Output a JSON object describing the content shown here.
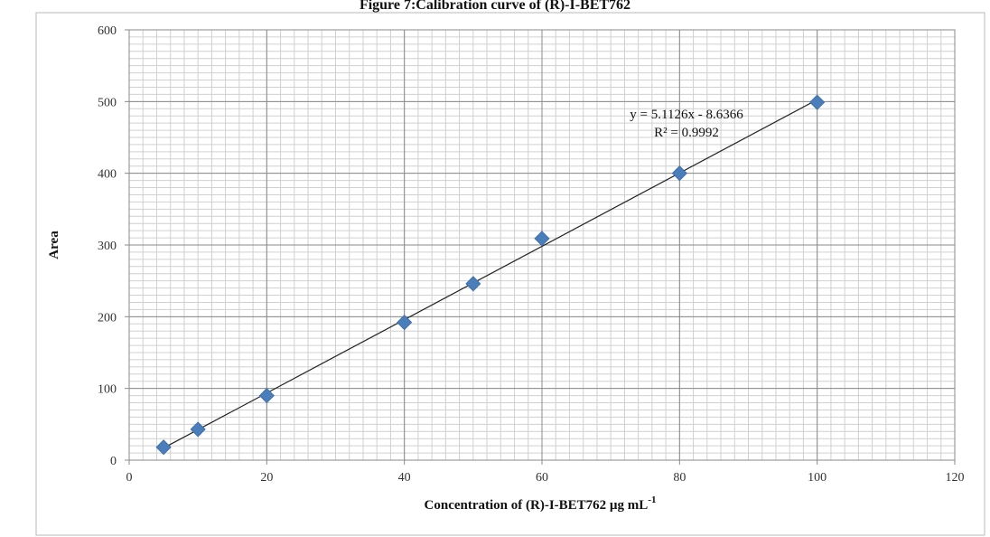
{
  "chart_data": {
    "type": "scatter",
    "title": "Figure 7:Calibration curve of (R)-I-BET762",
    "xlabel": "Concentration of (R)-I-BET762 µg mL",
    "xlabel_sup": "-1",
    "ylabel": "Area",
    "xlim": [
      0,
      120
    ],
    "ylim": [
      0,
      600
    ],
    "x_ticks": [
      "0",
      "20",
      "40",
      "60",
      "80",
      "100",
      "120"
    ],
    "y_ticks": [
      "0",
      "100",
      "200",
      "300",
      "400",
      "500",
      "600"
    ],
    "grid": true,
    "legend": "none",
    "series": [
      {
        "marker": "diamond",
        "color": "#4a7ebb",
        "points": [
          {
            "x": 5,
            "y": 18
          },
          {
            "x": 10,
            "y": 43
          },
          {
            "x": 20,
            "y": 90
          },
          {
            "x": 40,
            "y": 192
          },
          {
            "x": 50,
            "y": 246
          },
          {
            "x": 60,
            "y": 309
          },
          {
            "x": 80,
            "y": 400
          },
          {
            "x": 100,
            "y": 499
          }
        ]
      }
    ],
    "trendline": {
      "slope": 5.1126,
      "intercept": -8.6366,
      "x_range": [
        5,
        100
      ],
      "color": "#222222",
      "equation_text": "y = 5.1126x - 8.6366",
      "r2_text": "R² = 0.9992"
    }
  }
}
